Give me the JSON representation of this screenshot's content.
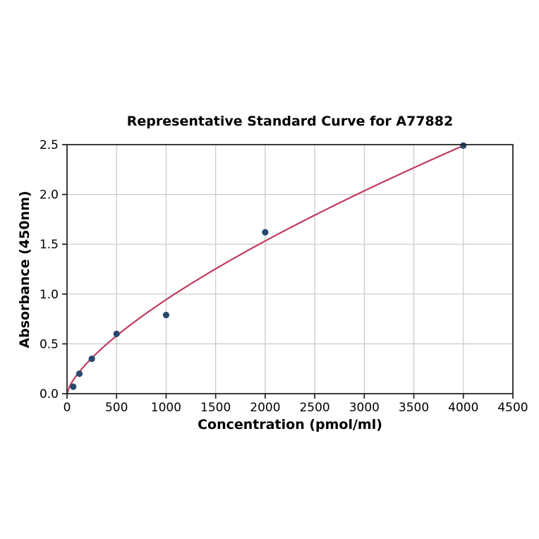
{
  "chart_data": {
    "type": "scatter",
    "title": "Representative Standard Curve for A77882",
    "xlabel": "Concentration (pmol/ml)",
    "ylabel": "Absorbance (450nm)",
    "xlim": [
      0,
      4500
    ],
    "ylim": [
      0,
      2.5
    ],
    "x_ticks": [
      0,
      500,
      1000,
      1500,
      2000,
      2500,
      3000,
      3500,
      4000,
      4500
    ],
    "x_tick_labels": [
      "0",
      "500",
      "1000",
      "1500",
      "2000",
      "2500",
      "3000",
      "3500",
      "4000",
      "4500"
    ],
    "y_ticks": [
      0,
      0.5,
      1.0,
      1.5,
      2.0,
      2.5
    ],
    "y_tick_labels": [
      "0.0",
      "0.5",
      "1.0",
      "1.5",
      "2.0",
      "2.5"
    ],
    "grid": true,
    "legend": "none",
    "points": [
      {
        "x": 62.5,
        "y": 0.07
      },
      {
        "x": 125,
        "y": 0.2
      },
      {
        "x": 250,
        "y": 0.35
      },
      {
        "x": 500,
        "y": 0.6
      },
      {
        "x": 1000,
        "y": 0.79
      },
      {
        "x": 2000,
        "y": 1.62
      },
      {
        "x": 4000,
        "y": 2.49
      }
    ],
    "fit_curve": {
      "type": "power",
      "equation": "y = 2.49 * (x/4000)^0.7",
      "scale": 2.49,
      "exponent": 0.7,
      "x_ref": 4000,
      "x_start": 0,
      "x_end": 4000
    },
    "colors": {
      "points": "#27496d",
      "curve": "#c13b5e",
      "grid": "#c9c9c9",
      "spine": "#262626",
      "text": "#000000"
    }
  }
}
